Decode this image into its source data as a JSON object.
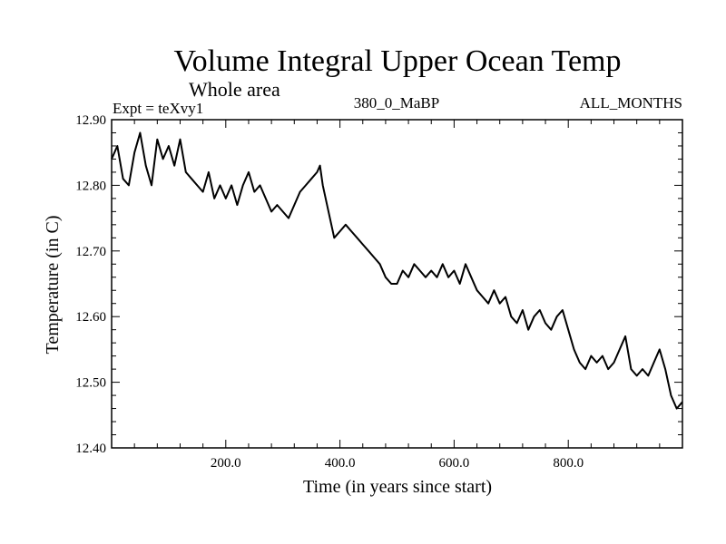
{
  "chart_data": {
    "type": "line",
    "title": "Volume Integral Upper Ocean Temp",
    "subtitle": "Whole area",
    "experiment_label": "Expt = teXvy1",
    "center_label": "380_0_MaBP",
    "right_label": "ALL_MONTHS",
    "xlabel": "Time (in years since start)",
    "ylabel": "Temperature (in C)",
    "xlim": [
      0,
      1000
    ],
    "ylim": [
      12.4,
      12.9
    ],
    "x_ticks": [
      200,
      400,
      600,
      800
    ],
    "x_tick_labels": [
      "200.0",
      "400.0",
      "600.0",
      "800.0"
    ],
    "y_ticks": [
      12.4,
      12.5,
      12.6,
      12.7,
      12.8,
      12.9
    ],
    "y_tick_labels": [
      "12.40",
      "12.50",
      "12.60",
      "12.70",
      "12.80",
      "12.90"
    ],
    "grid": false,
    "line_color": "#000000",
    "series": [
      {
        "name": "Temperature",
        "x": [
          0,
          10,
          20,
          30,
          40,
          50,
          60,
          70,
          80,
          90,
          100,
          110,
          120,
          130,
          140,
          150,
          160,
          170,
          180,
          190,
          200,
          210,
          220,
          230,
          240,
          250,
          260,
          270,
          280,
          290,
          300,
          310,
          320,
          330,
          340,
          350,
          360,
          365,
          370,
          380,
          390,
          400,
          410,
          420,
          430,
          440,
          450,
          460,
          470,
          480,
          490,
          500,
          510,
          520,
          530,
          540,
          550,
          560,
          570,
          580,
          590,
          600,
          610,
          620,
          630,
          640,
          650,
          660,
          670,
          680,
          690,
          700,
          710,
          720,
          730,
          740,
          750,
          760,
          770,
          780,
          790,
          800,
          810,
          820,
          830,
          840,
          850,
          860,
          870,
          880,
          890,
          900,
          910,
          920,
          930,
          940,
          950,
          960,
          970,
          980,
          990,
          1000
        ],
        "values": [
          12.84,
          12.86,
          12.81,
          12.8,
          12.85,
          12.88,
          12.83,
          12.8,
          12.87,
          12.84,
          12.86,
          12.83,
          12.87,
          12.82,
          12.81,
          12.8,
          12.79,
          12.82,
          12.78,
          12.8,
          12.78,
          12.8,
          12.77,
          12.8,
          12.82,
          12.79,
          12.8,
          12.78,
          12.76,
          12.77,
          12.76,
          12.75,
          12.77,
          12.79,
          12.8,
          12.81,
          12.82,
          12.83,
          12.8,
          12.76,
          12.72,
          12.73,
          12.74,
          12.73,
          12.72,
          12.71,
          12.7,
          12.69,
          12.68,
          12.66,
          12.65,
          12.65,
          12.67,
          12.66,
          12.68,
          12.67,
          12.66,
          12.67,
          12.66,
          12.68,
          12.66,
          12.67,
          12.65,
          12.68,
          12.66,
          12.64,
          12.63,
          12.62,
          12.64,
          12.62,
          12.63,
          12.6,
          12.59,
          12.61,
          12.58,
          12.6,
          12.61,
          12.59,
          12.58,
          12.6,
          12.61,
          12.58,
          12.55,
          12.53,
          12.52,
          12.54,
          12.53,
          12.54,
          12.52,
          12.53,
          12.55,
          12.57,
          12.52,
          12.51,
          12.52,
          12.51,
          12.53,
          12.55,
          12.52,
          12.48,
          12.46,
          12.47
        ]
      }
    ]
  }
}
